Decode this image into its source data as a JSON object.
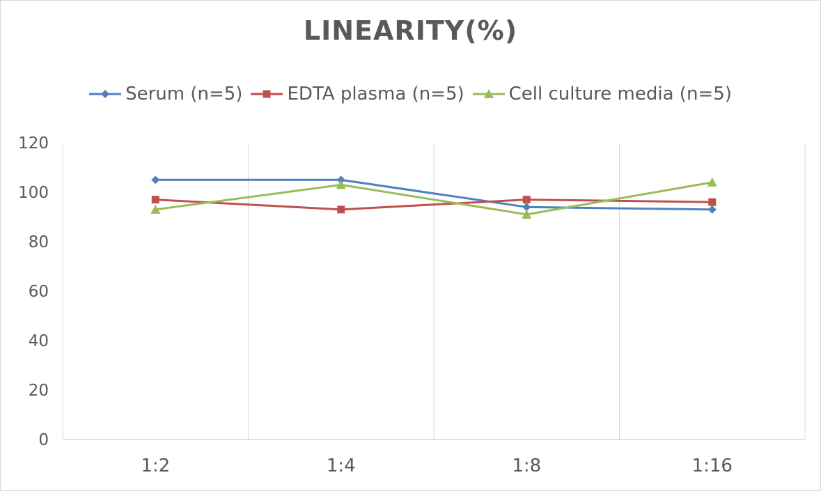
{
  "chart_data": {
    "type": "line",
    "title": "LINEARITY(%)",
    "categories": [
      "1:2",
      "1:4",
      "1:8",
      "1:16"
    ],
    "ylim": [
      0,
      120
    ],
    "yticks": [
      0,
      20,
      40,
      60,
      80,
      100,
      120
    ],
    "grid": "vertical",
    "legend_position": "top",
    "series": [
      {
        "name": "Serum (n=5)",
        "values": [
          105,
          105,
          94,
          93
        ],
        "color": "#4f81bd",
        "marker": "diamond"
      },
      {
        "name": "EDTA plasma (n=5)",
        "values": [
          97,
          93,
          97,
          96
        ],
        "color": "#c0504d",
        "marker": "square"
      },
      {
        "name": "Cell culture media (n=5)",
        "values": [
          93,
          103,
          91,
          104
        ],
        "color": "#9bbb59",
        "marker": "triangle"
      }
    ]
  }
}
